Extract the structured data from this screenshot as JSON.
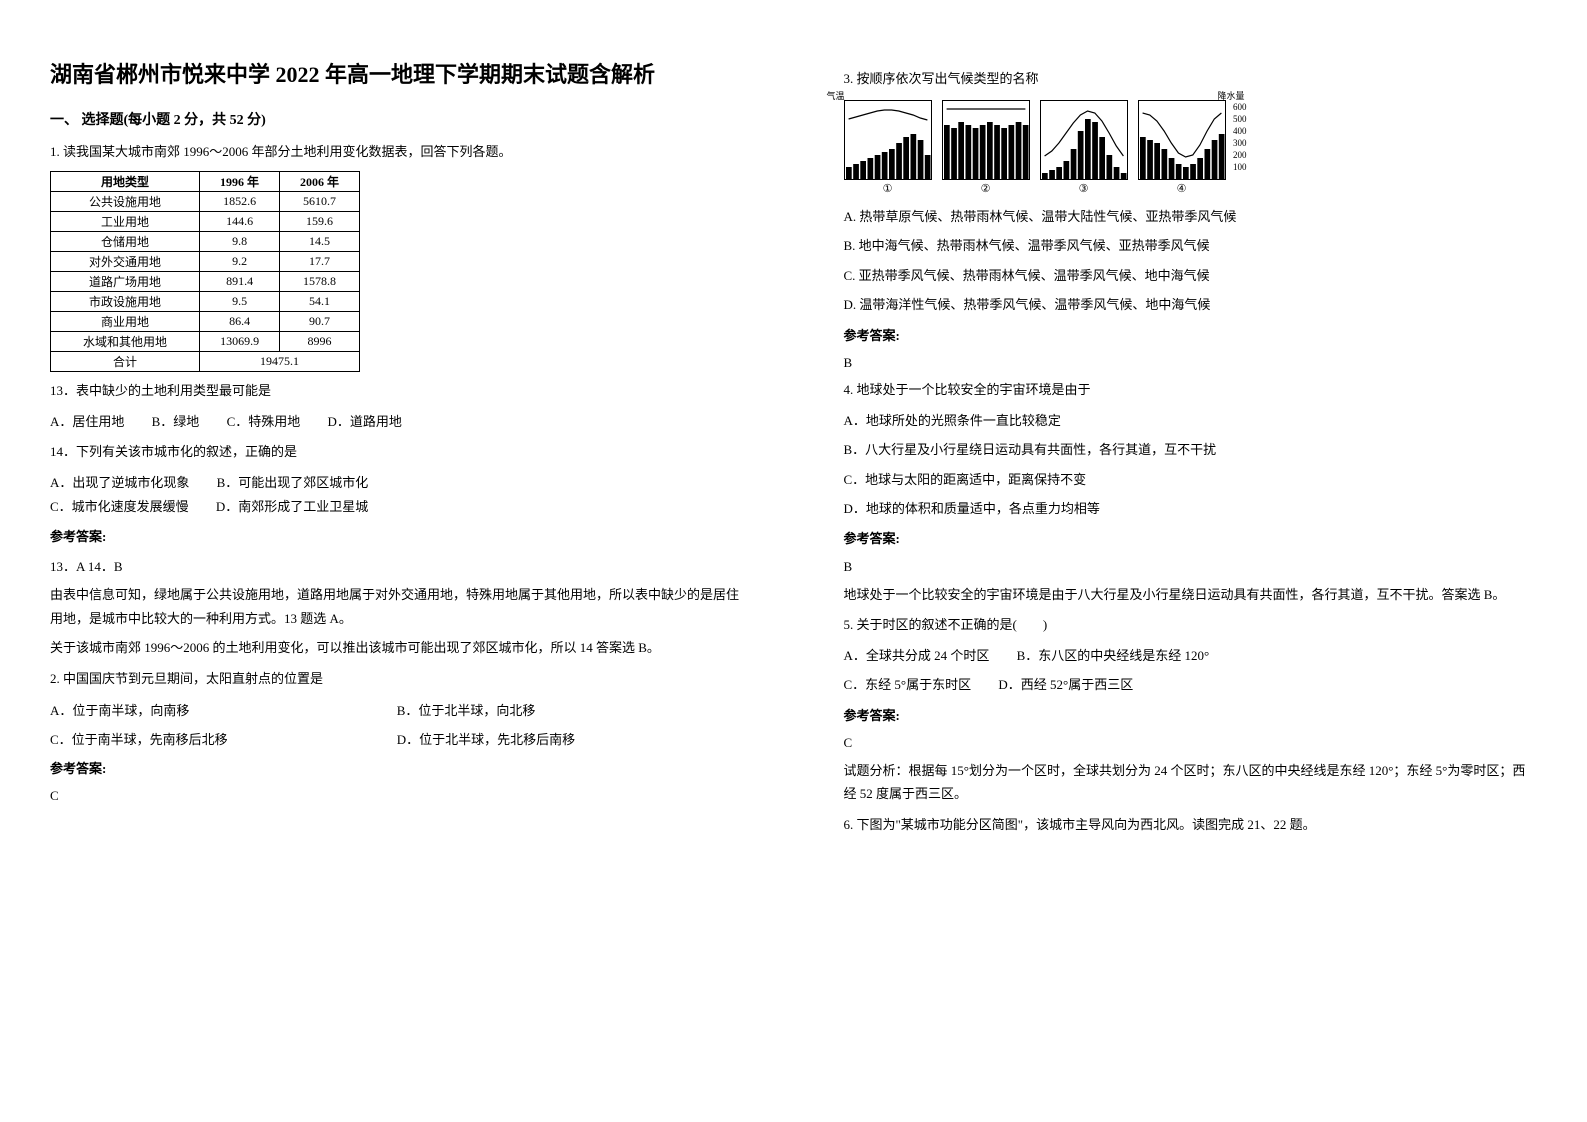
{
  "title": "湖南省郴州市悦来中学 2022 年高一地理下学期期末试题含解析",
  "section_header": "一、 选择题(每小题 2 分，共 52 分)",
  "q1": {
    "intro": "1. 读我国某大城市南郊 1996～2006 年部分土地利用变化数据表，回答下列各题。",
    "table": {
      "headers": [
        "用地类型",
        "1996 年",
        "2006 年"
      ],
      "rows": [
        [
          "公共设施用地",
          "1852.6",
          "5610.7"
        ],
        [
          "工业用地",
          "144.6",
          "159.6"
        ],
        [
          "仓储用地",
          "9.8",
          "14.5"
        ],
        [
          "对外交通用地",
          "9.2",
          "17.7"
        ],
        [
          "道路广场用地",
          "891.4",
          "1578.8"
        ],
        [
          "市政设施用地",
          "9.5",
          "54.1"
        ],
        [
          "商业用地",
          "86.4",
          "90.7"
        ],
        [
          "水域和其他用地",
          "13069.9",
          "8996"
        ],
        [
          "合计",
          "19475.1",
          ""
        ]
      ]
    },
    "q13_text": "13．表中缺少的土地利用类型最可能是",
    "q13_opts": {
      "a": "A．居住用地",
      "b": "B．绿地",
      "c": "C．特殊用地",
      "d": "D．道路用地"
    },
    "q14_text": "14．下列有关该市城市化的叙述，正确的是",
    "q14_opts": {
      "a": "A．出现了逆城市化现象",
      "b": "B．可能出现了郊区城市化",
      "c": "C．城市化速度发展缓慢",
      "d": "D．南郊形成了工业卫星城"
    },
    "answer_label": "参考答案:",
    "answer": "13．A    14．B",
    "explain": "由表中信息可知，绿地属于公共设施用地，道路用地属于对外交通用地，特殊用地属于其他用地，所以表中缺少的是居住用地，是城市中比较大的一种利用方式。13 题选 A。",
    "explain2": "关于该城市南郊 1996～2006 的土地利用变化，可以推出该城市可能出现了郊区城市化，所以 14 答案选 B。"
  },
  "q2": {
    "text": "2. 中国国庆节到元旦期间，太阳直射点的位置是",
    "opts": {
      "a": "A．位于南半球，向南移",
      "b": "B．位于北半球，向北移",
      "c": "C．位于南半球，先南移后北移",
      "d": "D．位于北半球，先北移后南移"
    },
    "answer_label": "参考答案:",
    "answer": "C"
  },
  "q3": {
    "text": "3. 按顺序依次写出气候类型的名称",
    "charts": [
      {
        "label": "①",
        "values": [
          4,
          5,
          6,
          7,
          8,
          9,
          10,
          12,
          14,
          15,
          13,
          8
        ],
        "temp_curve": "low-curve"
      },
      {
        "label": "②",
        "values": [
          18,
          17,
          19,
          18,
          17,
          18,
          19,
          18,
          17,
          18,
          19,
          18
        ],
        "temp_curve": "flat-high"
      },
      {
        "label": "③",
        "values": [
          2,
          3,
          4,
          6,
          10,
          16,
          20,
          19,
          14,
          8,
          4,
          2
        ],
        "temp_curve": "mid-curve"
      },
      {
        "label": "④",
        "values": [
          14,
          13,
          12,
          10,
          7,
          5,
          4,
          5,
          7,
          10,
          13,
          15
        ],
        "temp_curve": "inv-curve"
      }
    ],
    "opts": {
      "a": "A. 热带草原气候、热带雨林气候、温带大陆性气候、亚热带季风气候",
      "b": "B. 地中海气候、热带雨林气候、温带季风气候、亚热带季风气候",
      "c": "C. 亚热带季风气候、热带雨林气候、温带季风气候、地中海气候",
      "d": "D. 温带海洋性气候、热带季风气候、温带季风气候、地中海气候"
    },
    "answer_label": "参考答案:",
    "answer": "B"
  },
  "q4": {
    "text": "4. 地球处于一个比较安全的宇宙环境是由于",
    "opts": {
      "a": "A．地球所处的光照条件一直比较稳定",
      "b": "B．八大行星及小行星绕日运动具有共面性，各行其道，互不干扰",
      "c": "C．地球与太阳的距离适中，距离保持不变",
      "d": "D．地球的体积和质量适中，各点重力均相等"
    },
    "answer_label": "参考答案:",
    "answer": "B",
    "explain": "地球处于一个比较安全的宇宙环境是由于八大行星及小行星绕日运动具有共面性，各行其道，互不干扰。答案选 B。"
  },
  "q5": {
    "text": "5. 关于时区的叙述不正确的是(　　)",
    "opts": {
      "a": "A．全球共分成 24 个时区",
      "b": "B．东八区的中央经线是东经 120°",
      "c": "C．东经 5°属于东时区",
      "d": "D．西经 52°属于西三区"
    },
    "answer_label": "参考答案:",
    "answer": "C",
    "explain": "试题分析：根据每 15°划分为一个区时，全球共划分为 24 个区时；东八区的中央经线是东经 120°；东经 5°为零时区；西经 52 度属于西三区。"
  },
  "q6": {
    "text": "6. 下图为\"某城市功能分区简图\"，该城市主导风向为西北风。读图完成 21、22 题。"
  }
}
